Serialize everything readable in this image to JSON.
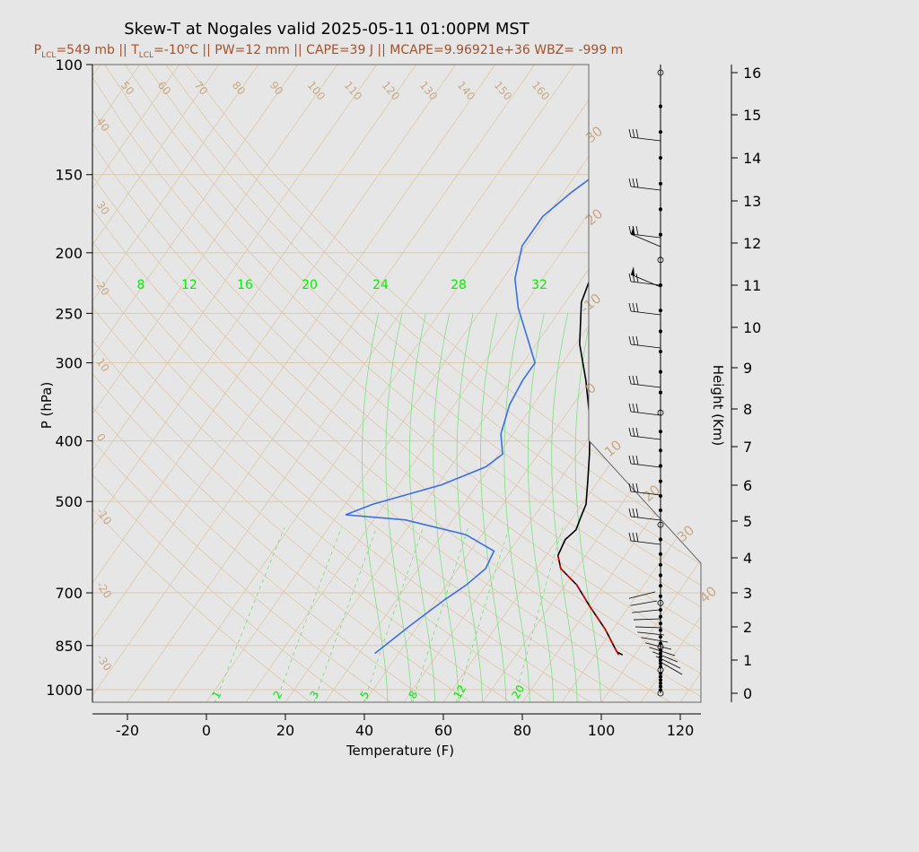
{
  "title": "Skew-T at Nogales valid 2025-05-11 01:00PM MST",
  "subtitle": {
    "p_prefix": "P",
    "p_sub": "LCL",
    "p_rest": "=549 mb || T",
    "t_sub": "LCL",
    "t_rest": "=-10",
    "deg": "o",
    "rest": "C || PW=12 mm || CAPE=39 J || MCAPE=9.96921e+36 WBZ= -999 m"
  },
  "chart_data": {
    "type": "line",
    "title": "Skew-T at Nogales valid 2025-05-11 01:00PM MST",
    "xlabel": "Temperature (F)",
    "ylabel": "P (hPa)",
    "y2label": "Height (Km)",
    "xlim": [
      -29,
      125
    ],
    "ylim_hpa": [
      1050,
      100
    ],
    "x_ticks": [
      -20,
      0,
      20,
      40,
      60,
      80,
      100,
      120
    ],
    "p_ticks": [
      100,
      150,
      200,
      250,
      300,
      400,
      500,
      700,
      850,
      1000
    ],
    "height_ticks": [
      0,
      1,
      2,
      3,
      4,
      5,
      6,
      7,
      8,
      9,
      10,
      11,
      12,
      13,
      14,
      15,
      16
    ],
    "mixing_ratio_labels_top": [
      "8",
      "12",
      "16",
      "20",
      "24",
      "28",
      "32"
    ],
    "mixing_ratio_labels_bottom": [
      "1",
      "2",
      "3",
      "5",
      "8",
      "12",
      "20"
    ],
    "dry_adiabat_labels": [
      "50",
      "60",
      "70",
      "80",
      "90",
      "100",
      "110",
      "120",
      "130",
      "140",
      "150",
      "160"
    ],
    "isotherm_labels_left": [
      "40",
      "30",
      "20",
      "10",
      "0",
      "-10",
      "-20",
      "-30"
    ],
    "isotherm_labels_right": [
      "30",
      "20",
      "-10",
      "0",
      "10",
      "20",
      "30",
      "40"
    ],
    "series": [
      {
        "name": "Temperature",
        "color": "#000000",
        "points": [
          [
            97,
            880
          ],
          [
            95,
            870
          ],
          [
            88,
            800
          ],
          [
            80,
            735
          ],
          [
            73,
            680
          ],
          [
            66,
            640
          ],
          [
            63,
            610
          ],
          [
            62,
            575
          ],
          [
            63,
            555
          ],
          [
            62,
            530
          ],
          [
            61,
            505
          ],
          [
            57,
            460
          ],
          [
            53,
            420
          ],
          [
            47,
            370
          ],
          [
            39,
            320
          ],
          [
            31,
            280
          ],
          [
            24,
            240
          ],
          [
            21,
            210
          ],
          [
            20,
            195
          ],
          [
            23,
            170
          ],
          [
            27,
            140
          ],
          [
            33,
            118
          ],
          [
            40,
            105
          ],
          [
            47,
            100
          ]
        ]
      },
      {
        "name": "Dewpoint",
        "color": "#3a6fe0",
        "points": [
          [
            34,
            875
          ],
          [
            38,
            790
          ],
          [
            42,
            720
          ],
          [
            45,
            680
          ],
          [
            47,
            640
          ],
          [
            46,
            600
          ],
          [
            36,
            565
          ],
          [
            18,
            535
          ],
          [
            2,
            525
          ],
          [
            7,
            505
          ],
          [
            21,
            470
          ],
          [
            29,
            440
          ],
          [
            31,
            420
          ],
          [
            27,
            390
          ],
          [
            24,
            350
          ],
          [
            23,
            320
          ],
          [
            23,
            300
          ],
          [
            17,
            275
          ],
          [
            9,
            245
          ],
          [
            3,
            220
          ],
          [
            -1,
            195
          ],
          [
            -1,
            175
          ],
          [
            2,
            160
          ],
          [
            8,
            140
          ],
          [
            18,
            120
          ],
          [
            25,
            105
          ],
          [
            27,
            100
          ]
        ]
      },
      {
        "name": "Parcel",
        "color": "#cc0000",
        "points": [
          [
            96,
            880
          ],
          [
            88,
            800
          ],
          [
            80,
            735
          ],
          [
            73,
            680
          ],
          [
            66,
            640
          ],
          [
            63,
            610
          ]
        ]
      }
    ],
    "wind_profile_heights_km": [
      0.0,
      0.1,
      0.2,
      0.3,
      0.4,
      0.5,
      0.6,
      0.7,
      0.8,
      0.9,
      1.0,
      1.1,
      1.2,
      1.3,
      1.4,
      1.5,
      1.7,
      1.9,
      2.1,
      2.3,
      2.5,
      2.7,
      2.9,
      3.2,
      3.5,
      3.8,
      4.1,
      4.5,
      4.9,
      5.3,
      5.7,
      6.1,
      6.5,
      6.9,
      7.4,
      7.9,
      8.4,
      8.9,
      9.4,
      9.9,
      10.4,
      11.0,
      11.6,
      12.2,
      12.8,
      13.4,
      14.0,
      14.6,
      15.2,
      16.0
    ]
  },
  "colors": {
    "background": "#e6e6e6",
    "plot_bg": "#e6e6e6",
    "isotherm": "#dcc8ac",
    "mixing_ratio": "#7ee07e",
    "moist_adiabat": "#7ee07e",
    "subtitle": "#a0522d"
  }
}
